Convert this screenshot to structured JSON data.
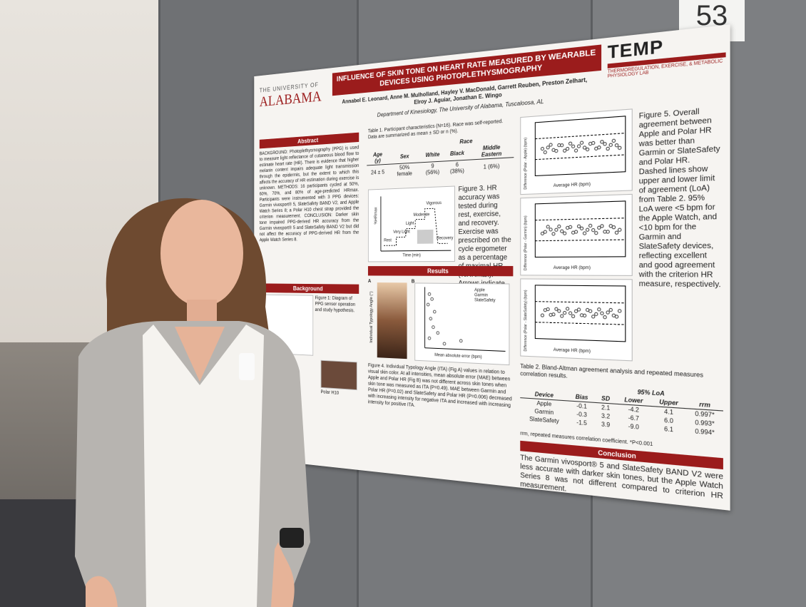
{
  "booth_number": "53",
  "poster": {
    "university": [
      "THE UNIVERSITY OF",
      "ALABAMA"
    ],
    "title": "INFLUENCE OF SKIN TONE ON HEART RATE MEASURED BY WEARABLE DEVICES USING PHOTOPLETHYSMOGRAPHY",
    "authors": "Annabel E. Leonard, Anne M. Mulholland, Hayley V. MacDonald, Garrett Reuben, Preston Zelhart, Elroy J. Aguiar, Jonathan E. Wingo",
    "affiliation": "Department of Kinesiology, The University of Alabama, Tuscaloosa, AL",
    "lab": {
      "name": "TEMP",
      "subtitle": "THERMOREGULATION, EXERCISE, & METABOLIC PHYSIOLOGY LAB"
    },
    "sections": [
      "Abstract",
      "Background",
      "Results",
      "Conclusion"
    ],
    "abstract": "BACKGROUND: Photoplethysmography (PPG) is used to measure light reflectance of cutaneous blood flow to estimate heart rate (HR). There is evidence that higher melanin content impairs adequate light transmission through the epidermis, but the extent to which this affects the accuracy of HR estimation during exercise is unknown. METHODS: 16 participants cycled at 50%, 60%, 70%, and 80% of age-predicted HRmax. Participants were instrumented with 3 PPG devices: Garmin vivosport® 5, SlateSafety BAND V2, and Apple Watch Series 8; a Polar H10 chest strap provided the criterion measurement. CONCLUSION: Darker skin tone impaired PPG-derived HR accuracy from the Garmin vivosport® 5 and SlateSafety BAND V2 but did not affect the accuracy of PPG-derived HR from the Apple Watch Series 8.",
    "background": "Figure 1: Diagram of PPG sensor operation and study hypothesis.",
    "polar_label": "Polar H10",
    "table1": {
      "caption": "Table 1. Participant characteristics (N=16). Race was self-reported. Data are summarized as mean ± SD or n (%).",
      "race": "Race",
      "headers": [
        "Age (y)",
        "Sex",
        "White",
        "Black",
        "Middle Eastern"
      ],
      "row": [
        "24 ± 5",
        "50% female",
        "9 (56%)",
        "6 (38%)",
        "1 (6%)"
      ]
    },
    "figure3": {
      "caption": "Figure 3. HR accuracy was tested during rest, exercise, and recovery. Exercise was prescribed on the cycle ergometer as a percentage of maximal HR (%HRmax). Arrows indicate time points used for data analysis.",
      "xlabel": "Time (min)",
      "ylabel": "%HRmax",
      "stages": [
        "Rest",
        "Very Light",
        "Light",
        "Moderate",
        "Vigorous",
        "Recovery"
      ]
    },
    "figure4": {
      "panels": [
        "A",
        "B"
      ],
      "xlabel": "Mean absolute error (bpm)",
      "ylabel": "Individual Typology Angle (°)",
      "legend": [
        "Apple",
        "Garmin",
        "SlateSafety"
      ],
      "caption": "Figure 4. Individual Typology Angle (ITA) (Fig A) values in relation to visual skin color. At all intensities, mean absolute error (MAE) between Apple and Polar HR (Fig B) was not different across skin tones when skin tone was measured as ITA (P=0.49). MAE between Garmin and Polar HR (P=0.02) and SlateSafety and Polar HR (P=0.006) decreased with increasing intensity for negative ITA and increased with increasing intensity for positive ITA."
    },
    "figure5": {
      "caption": "Figure 5. Overall agreement between Apple and Polar HR was better than Garmin or SlateSafety and Polar HR. Dashed lines show upper and lower limit of agreement (LoA) from Table 2. 95% LoA were <5 bpm for the Apple Watch, and <10 bpm for the Garmin and SlateSafety devices, reflecting excellent and good agreement with the criterion HR measure, respectively.",
      "xlabel": "Average HR (bpm)",
      "ylabels": [
        "Difference (Polar - Apple) (bpm)",
        "Difference (Polar - Garmin) (bpm)",
        "Difference (Polar - SlateSafety) (bpm)"
      ]
    },
    "table2": {
      "caption": "Table 2. Bland-Altman agreement analysis and repeated measures correlation results.",
      "loa": "95% LoA",
      "headers": [
        "Device",
        "Bias",
        "SD",
        "Lower",
        "Upper",
        "rrm"
      ],
      "rows": [
        [
          "Apple",
          "-0.1",
          "2.1",
          "-4.2",
          "4.1",
          "0.997*"
        ],
        [
          "Garmin",
          "-0.3",
          "3.2",
          "-6.7",
          "6.0",
          "0.993*"
        ],
        [
          "SlateSafety",
          "-1.5",
          "3.9",
          "-9.0",
          "6.1",
          "0.994*"
        ]
      ],
      "footnote": "rrm, repeated measures correlation coefficient. *P<0.001"
    },
    "conclusion": "The Garmin vivosport® 5 and SlateSafety BAND V2 were less accurate with darker skin tones, but the Apple Watch Series 8 was not different compared to criterion HR measurement."
  }
}
